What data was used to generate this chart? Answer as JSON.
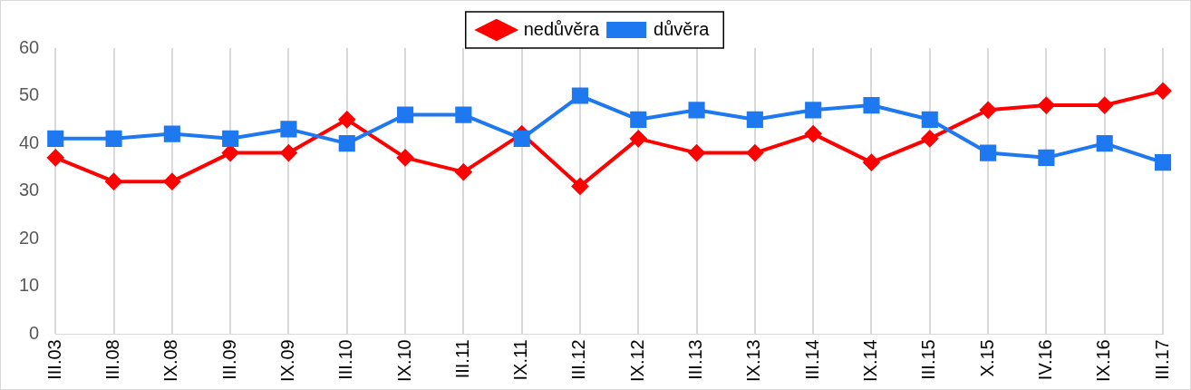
{
  "chart_data": {
    "type": "line",
    "categories": [
      "III.03",
      "III.08",
      "IX.08",
      "III.09",
      "IX.09",
      "III.10",
      "IX.10",
      "III.11",
      "IX.11",
      "III.12",
      "IX.12",
      "III.13",
      "IX.13",
      "III.14",
      "IX.14",
      "III.15",
      "X.15",
      "IV.16",
      "IX.16",
      "III.17"
    ],
    "series": [
      {
        "name": "nedůvěra",
        "color": "#ff0000",
        "marker": "diamond",
        "values": [
          37,
          32,
          32,
          38,
          38,
          45,
          37,
          34,
          42,
          31,
          41,
          38,
          38,
          42,
          36,
          41,
          47,
          48,
          48,
          51
        ]
      },
      {
        "name": "důvěra",
        "color": "#1e78f0",
        "marker": "square",
        "values": [
          41,
          41,
          42,
          41,
          43,
          40,
          46,
          46,
          41,
          50,
          45,
          47,
          45,
          47,
          48,
          45,
          38,
          37,
          40,
          36
        ]
      }
    ],
    "ylim": [
      0,
      60
    ],
    "yticks": [
      0,
      10,
      20,
      30,
      40,
      50,
      60
    ],
    "grid": "x",
    "legend": "top",
    "line_style": "solid"
  }
}
